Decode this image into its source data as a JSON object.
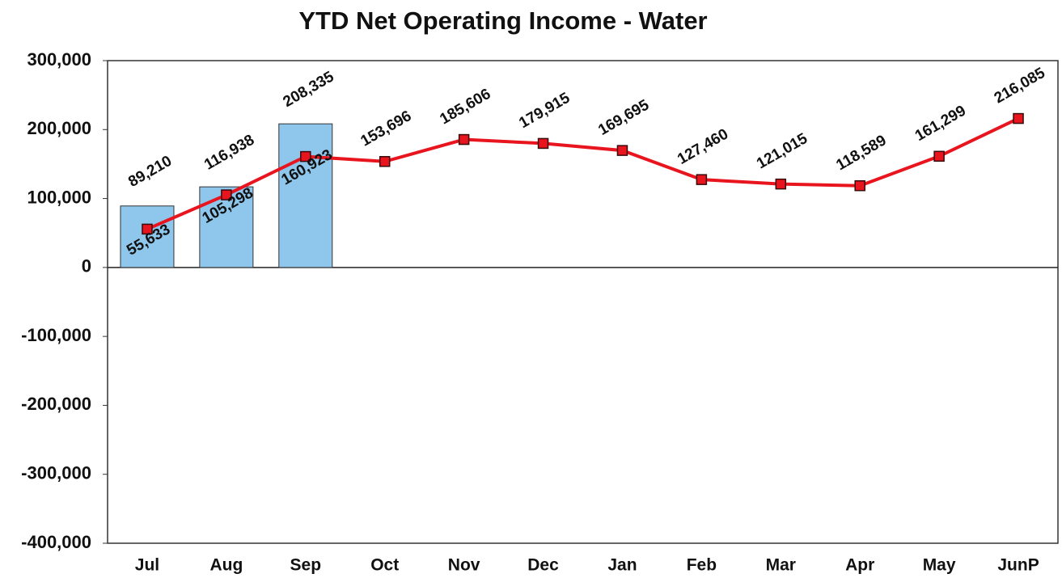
{
  "chart_data": {
    "type": "bar",
    "title": "YTD Net Operating Income - Water",
    "categories": [
      "Jul",
      "Aug",
      "Sep",
      "Oct",
      "Nov",
      "Dec",
      "Jan",
      "Feb",
      "Mar",
      "Apr",
      "May",
      "JunP"
    ],
    "series": [
      {
        "type": "bar",
        "color": "#8ec6ec",
        "values": [
          89210,
          116938,
          208335,
          null,
          null,
          null,
          null,
          null,
          null,
          null,
          null,
          null
        ],
        "value_labels": [
          "89,210",
          "116,938",
          "208,335",
          null,
          null,
          null,
          null,
          null,
          null,
          null,
          null,
          null
        ]
      },
      {
        "type": "line",
        "color": "#e8141e",
        "values": [
          55633,
          105298,
          160923,
          153696,
          185606,
          179915,
          169695,
          127460,
          121015,
          118589,
          161299,
          216085
        ],
        "value_labels": [
          "55,633",
          "105,298",
          "160,923",
          "153,696",
          "185,606",
          "179,915",
          "169,695",
          "127,460",
          "121,015",
          "118,589",
          "161,299",
          "216,085"
        ]
      }
    ],
    "ylim": [
      -400000,
      300000
    ],
    "yticks": [
      {
        "value": -400000,
        "label": "-400,000"
      },
      {
        "value": -300000,
        "label": "-300,000"
      },
      {
        "value": -200000,
        "label": "-200,000"
      },
      {
        "value": -100000,
        "label": "-100,000"
      },
      0,
      {
        "value": 100000,
        "label": "100,000"
      },
      {
        "value": 200000,
        "label": "200,000"
      },
      {
        "value": 300000,
        "label": "300,000"
      }
    ],
    "grid": false
  }
}
